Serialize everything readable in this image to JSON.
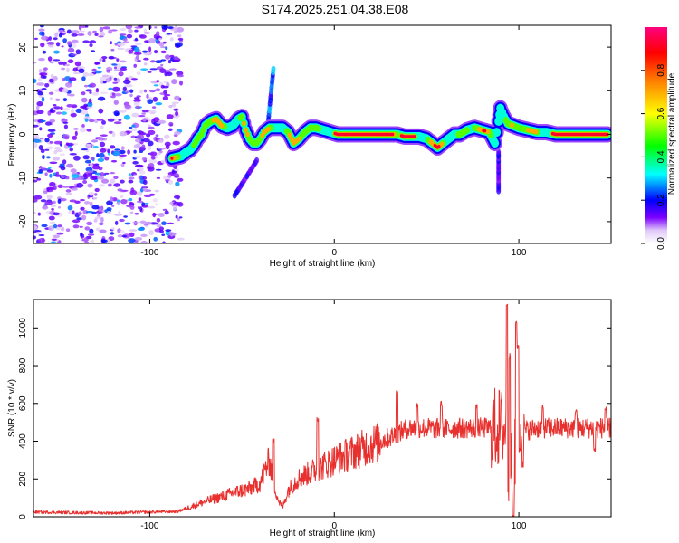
{
  "figure_title": "S174.2025.251.04.38.E08",
  "chart_data": [
    {
      "type": "heatmap",
      "title": "",
      "xlabel": "Height of straight line (km)",
      "ylabel": "Frequency (Hz)",
      "xlim": [
        -163,
        150
      ],
      "ylim": [
        -25,
        25
      ],
      "xticks": [
        -100,
        0,
        100
      ],
      "yticks": [
        -20,
        -10,
        0,
        10,
        20
      ],
      "colorbar": {
        "label": "Normalized spectral amplitude",
        "range": [
          0,
          1
        ],
        "ticks": [
          0.0,
          0.2,
          0.4,
          0.6,
          0.8
        ],
        "colors": [
          "#ffffff",
          "#e0c8f8",
          "#7b00ff",
          "#0000ff",
          "#00ffff",
          "#00ff00",
          "#ffff00",
          "#ff8000",
          "#ff0000",
          "#ff0080"
        ]
      },
      "noise_region": {
        "x_from": -163,
        "x_to": -83,
        "amplitude": 0.25
      },
      "ridge": [
        [
          -88,
          -5.5
        ],
        [
          -83,
          -5
        ],
        [
          -80,
          -4
        ],
        [
          -78,
          -3.5
        ],
        [
          -76,
          -2.5
        ],
        [
          -74,
          -1
        ],
        [
          -72,
          0
        ],
        [
          -70,
          2
        ],
        [
          -67,
          3
        ],
        [
          -64,
          3.5
        ],
        [
          -61,
          2
        ],
        [
          -58,
          1.5
        ],
        [
          -55,
          2
        ],
        [
          -52,
          3.5
        ],
        [
          -50,
          4
        ],
        [
          -48,
          1
        ],
        [
          -46,
          -1
        ],
        [
          -44,
          -2
        ],
        [
          -42,
          -2
        ],
        [
          -40,
          -1
        ],
        [
          -38,
          0.5
        ],
        [
          -35,
          1.5
        ],
        [
          -32,
          1.5
        ],
        [
          -28,
          1.5
        ],
        [
          -25,
          0.5
        ],
        [
          -22,
          -2
        ],
        [
          -19,
          -1
        ],
        [
          -16,
          0.5
        ],
        [
          -13,
          1.5
        ],
        [
          -10,
          1.5
        ],
        [
          -6,
          1
        ],
        [
          -2,
          0.5
        ],
        [
          2,
          0
        ],
        [
          8,
          0
        ],
        [
          15,
          0
        ],
        [
          22,
          0
        ],
        [
          26,
          0
        ],
        [
          30,
          0
        ],
        [
          34,
          0
        ],
        [
          38,
          -0.5
        ],
        [
          42,
          -0.5
        ],
        [
          46,
          -0.5
        ],
        [
          50,
          -1
        ],
        [
          53,
          -2
        ],
        [
          56,
          -3
        ],
        [
          59,
          -2
        ],
        [
          62,
          -1
        ],
        [
          65,
          0
        ],
        [
          68,
          0
        ],
        [
          72,
          1
        ],
        [
          76,
          1.5
        ],
        [
          80,
          1
        ],
        [
          84,
          0.5
        ],
        [
          87,
          -2
        ],
        [
          89,
          3
        ],
        [
          90,
          6
        ],
        [
          92,
          4
        ],
        [
          94,
          2.5
        ],
        [
          97,
          2
        ],
        [
          100,
          1.5
        ],
        [
          105,
          1
        ],
        [
          110,
          0.5
        ],
        [
          115,
          0.5
        ],
        [
          120,
          0
        ],
        [
          125,
          0
        ],
        [
          130,
          0
        ],
        [
          135,
          0
        ],
        [
          140,
          0
        ],
        [
          145,
          0
        ],
        [
          148,
          0
        ]
      ],
      "side_features": [
        {
          "from": [
            -36,
            2
          ],
          "to": [
            -33,
            15
          ],
          "amplitude": 0.3
        },
        {
          "from": [
            -54,
            -14
          ],
          "to": [
            -42,
            -6
          ],
          "amplitude": 0.2
        },
        {
          "from": [
            89,
            -13
          ],
          "to": [
            89,
            -4
          ],
          "amplitude": 0.2
        }
      ],
      "strong_segments": [
        [
          0,
          32
        ],
        [
          36,
          44
        ],
        [
          118,
          148
        ]
      ]
    },
    {
      "type": "line",
      "title": "",
      "xlabel": "Height of straight line (km)",
      "ylabel": "SNR (10 * v/v)",
      "xlim": [
        -163,
        150
      ],
      "ylim": [
        0,
        1150
      ],
      "xticks": [
        -100,
        0,
        100
      ],
      "yticks": [
        0,
        200,
        400,
        600,
        800,
        1000
      ],
      "color": "#e8312e",
      "trend_points": [
        [
          -163,
          25
        ],
        [
          -140,
          22
        ],
        [
          -120,
          20
        ],
        [
          -100,
          25
        ],
        [
          -85,
          28
        ],
        [
          -80,
          45
        ],
        [
          -70,
          80
        ],
        [
          -60,
          110
        ],
        [
          -50,
          140
        ],
        [
          -45,
          150
        ],
        [
          -40,
          180
        ],
        [
          -37,
          260
        ],
        [
          -35,
          300
        ],
        [
          -33,
          180
        ],
        [
          -30,
          80
        ],
        [
          -28,
          50
        ],
        [
          -25,
          140
        ],
        [
          -20,
          200
        ],
        [
          -10,
          250
        ],
        [
          0,
          300
        ],
        [
          10,
          340
        ],
        [
          20,
          380
        ],
        [
          30,
          420
        ],
        [
          40,
          470
        ],
        [
          50,
          470
        ],
        [
          60,
          465
        ],
        [
          70,
          470
        ],
        [
          80,
          470
        ],
        [
          90,
          470
        ],
        [
          93,
          460
        ],
        [
          94,
          300
        ],
        [
          97,
          250
        ],
        [
          100,
          450
        ],
        [
          110,
          470
        ],
        [
          120,
          470
        ],
        [
          130,
          470
        ],
        [
          140,
          470
        ],
        [
          150,
          470
        ]
      ],
      "peaks": [
        [
          -33,
          400
        ],
        [
          -9,
          520
        ],
        [
          34,
          670
        ],
        [
          45,
          590
        ],
        [
          58,
          600
        ],
        [
          77,
          580
        ],
        [
          93.5,
          1130
        ],
        [
          95,
          850
        ],
        [
          97,
          0
        ],
        [
          98.5,
          1030
        ],
        [
          99.5,
          900
        ],
        [
          100.5,
          350
        ],
        [
          113,
          580
        ],
        [
          131,
          560
        ],
        [
          141,
          350
        ],
        [
          147,
          570
        ]
      ]
    }
  ]
}
